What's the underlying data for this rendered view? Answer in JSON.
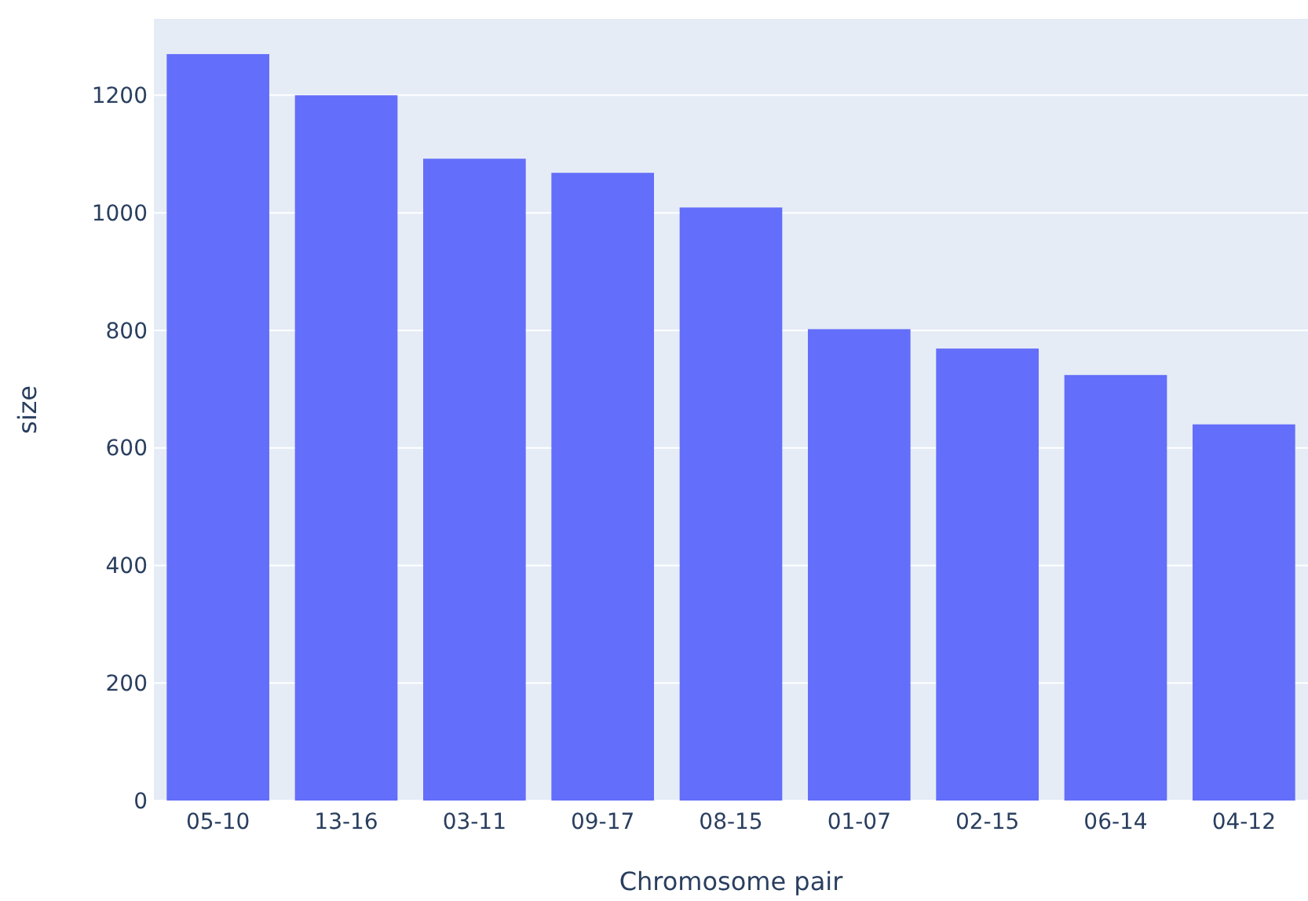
{
  "chart_data": {
    "type": "bar",
    "xlabel": "Chromosome pair",
    "ylabel": "size",
    "categories": [
      "05-10",
      "13-16",
      "03-11",
      "09-17",
      "08-15",
      "01-07",
      "02-15",
      "06-14",
      "04-12"
    ],
    "values": [
      1270,
      1200,
      1092,
      1068,
      1009,
      802,
      769,
      724,
      640
    ],
    "color": "#636efa",
    "ylim": [
      0,
      1330
    ],
    "yticks": [
      0,
      200,
      400,
      600,
      800,
      1000,
      1200
    ],
    "grid": "y"
  }
}
